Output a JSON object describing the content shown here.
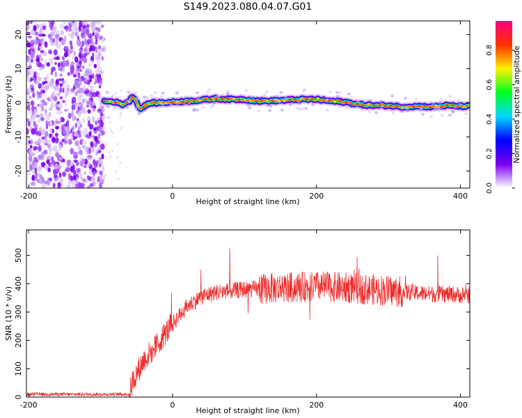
{
  "title": "S149.2023.080.04.07.G01",
  "chart_data": [
    {
      "type": "heatmap",
      "title": "S149.2023.080.04.07.G01",
      "xlabel": "Height of straight line (km)",
      "ylabel": "Frequency (Hz)",
      "xlim": [
        -203,
        413
      ],
      "ylim": [
        -25,
        24
      ],
      "xticks": [
        -200,
        0,
        200,
        400
      ],
      "yticks": [
        -20,
        -10,
        0,
        10,
        20
      ],
      "colorbar": {
        "label": "Normalized spectral amplitude",
        "range": [
          0,
          0.97
        ],
        "ticks": [
          "0.0",
          "0.2",
          "0.4",
          "0.6",
          "0.8"
        ],
        "colors": [
          "#ffffff",
          "#7b00f0",
          "#0000ff",
          "#00d8ff",
          "#00ff20",
          "#fff000",
          "#ff3000",
          "#ff0080"
        ]
      },
      "noise_region_x": [
        -203,
        -95
      ],
      "signal_track": {
        "x": [
          -95,
          -80,
          -70,
          -60,
          -55,
          -50,
          -45,
          -40,
          -30,
          -20,
          0,
          20,
          40,
          60,
          80,
          100,
          120,
          140,
          160,
          180,
          200,
          220,
          240,
          260,
          280,
          300,
          320,
          340,
          360,
          380,
          400,
          413
        ],
        "y": [
          0.5,
          0.3,
          -0.5,
          0.5,
          2.0,
          0.3,
          -2.0,
          -1.0,
          0.0,
          0.0,
          0.2,
          0.5,
          0.8,
          1.2,
          1.0,
          1.0,
          0.5,
          0.6,
          0.8,
          1.0,
          1.0,
          0.5,
          0.2,
          -0.5,
          -0.8,
          -0.8,
          -1.2,
          -1.0,
          -1.2,
          -0.8,
          -1.0,
          -1.0
        ]
      }
    },
    {
      "type": "line",
      "xlabel": "Height of straight line (km)",
      "ylabel": "SNR (10 * v/v)",
      "xlim": [
        -203,
        413
      ],
      "ylim": [
        0,
        590
      ],
      "xticks": [
        -200,
        0,
        200,
        400
      ],
      "yticks": [
        0,
        100,
        200,
        300,
        400,
        500
      ],
      "color": "#ee2a2a",
      "envelope": {
        "x": [
          -203,
          -60,
          -55,
          -40,
          -20,
          0,
          20,
          40,
          60,
          80,
          100,
          150,
          200,
          250,
          300,
          350,
          413
        ],
        "y": [
          10,
          10,
          60,
          130,
          190,
          260,
          320,
          355,
          370,
          375,
          380,
          385,
          390,
          385,
          375,
          365,
          360
        ]
      }
    }
  ]
}
